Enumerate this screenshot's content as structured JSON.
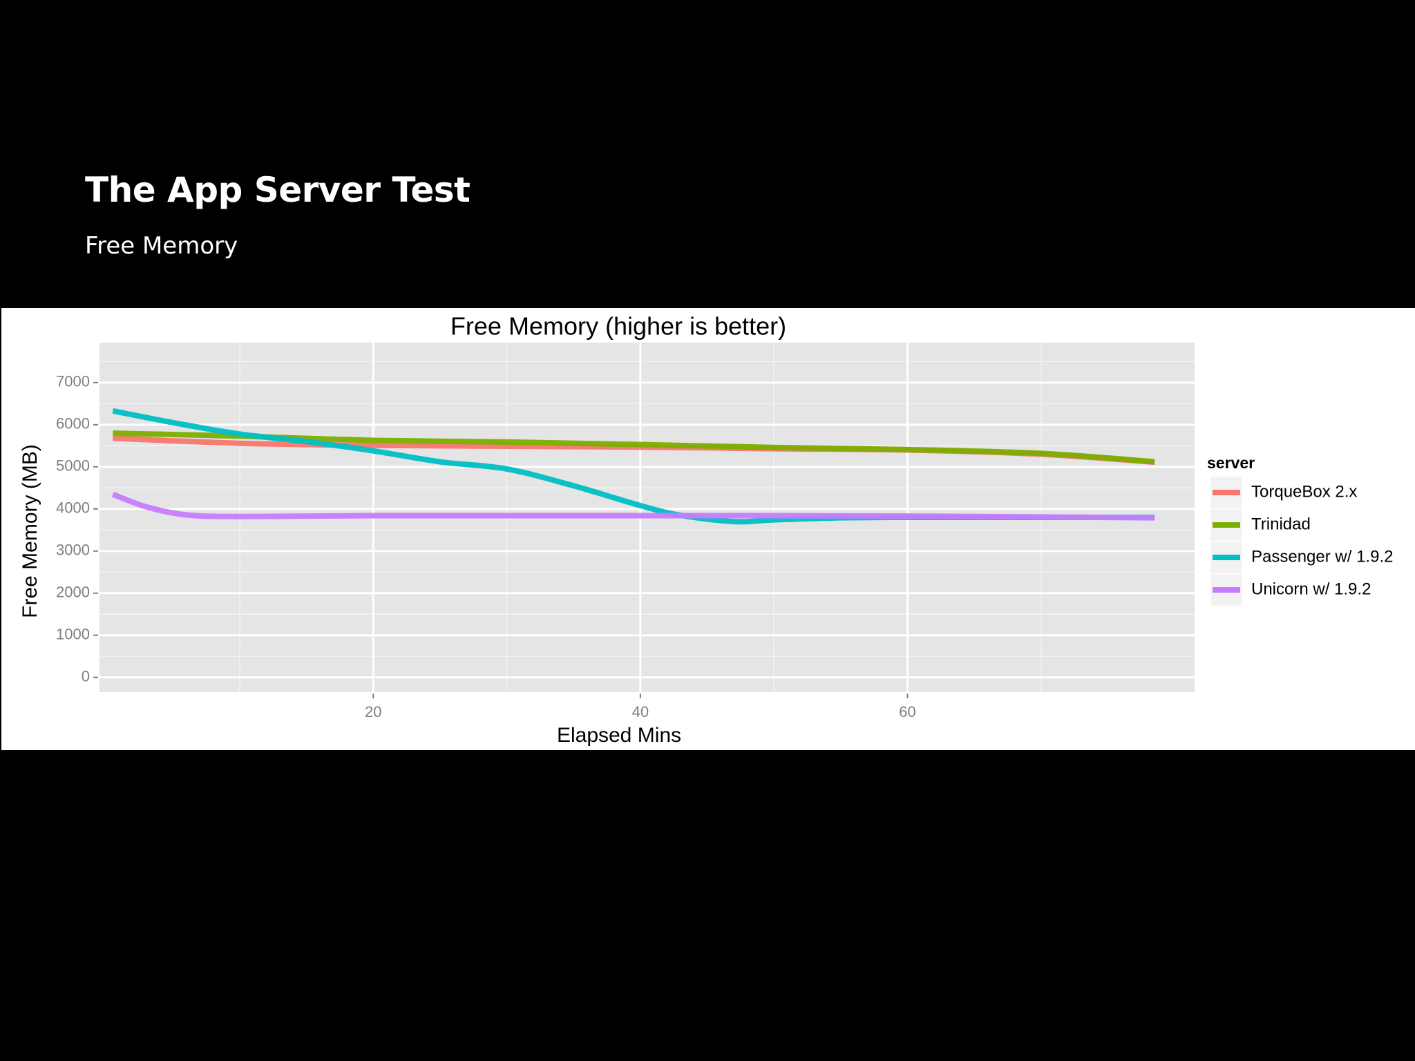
{
  "slide": {
    "title": "The App Server Test",
    "subtitle": "Free Memory"
  },
  "chart_data": {
    "type": "line",
    "title": "Free Memory (higher is better)",
    "xlabel": "Elapsed Mins",
    "ylabel": "Free Memory (MB)",
    "xlim": [
      -0.5,
      81.5
    ],
    "ylim": [
      -350,
      7950
    ],
    "x_ticks": [
      20,
      40,
      60
    ],
    "y_ticks": [
      0,
      1000,
      2000,
      3000,
      4000,
      5000,
      6000,
      7000
    ],
    "grid": true,
    "legend": {
      "title": "server",
      "position": "right"
    },
    "series": [
      {
        "name": "TorqueBox 2.x",
        "color": "#f8766d",
        "x": [
          0.5,
          10,
          20,
          30,
          40,
          50,
          60,
          70,
          78.5
        ],
        "y": [
          5680,
          5560,
          5510,
          5490,
          5470,
          5430,
          5400,
          5300,
          5110
        ]
      },
      {
        "name": "Trinidad",
        "color": "#7cae00",
        "x": [
          0.5,
          10,
          20,
          30,
          40,
          50,
          60,
          70,
          78.5
        ],
        "y": [
          5800,
          5730,
          5630,
          5590,
          5530,
          5460,
          5410,
          5320,
          5120
        ]
      },
      {
        "name": "Passenger w/ 1.9.2",
        "color": "#00bfc4",
        "x": [
          0.5,
          5,
          10,
          15,
          20,
          25,
          30,
          35,
          40,
          43,
          47,
          50,
          55,
          60,
          70,
          78.5
        ],
        "y": [
          6330,
          6050,
          5780,
          5600,
          5380,
          5120,
          4950,
          4550,
          4080,
          3850,
          3700,
          3740,
          3790,
          3800,
          3800,
          3800
        ]
      },
      {
        "name": "Unicorn w/ 1.9.2",
        "color": "#c77cff",
        "x": [
          0.5,
          3,
          6,
          10,
          20,
          30,
          40,
          50,
          60,
          70,
          78.5
        ],
        "y": [
          4350,
          4050,
          3860,
          3820,
          3840,
          3840,
          3840,
          3840,
          3830,
          3810,
          3790
        ]
      }
    ]
  }
}
